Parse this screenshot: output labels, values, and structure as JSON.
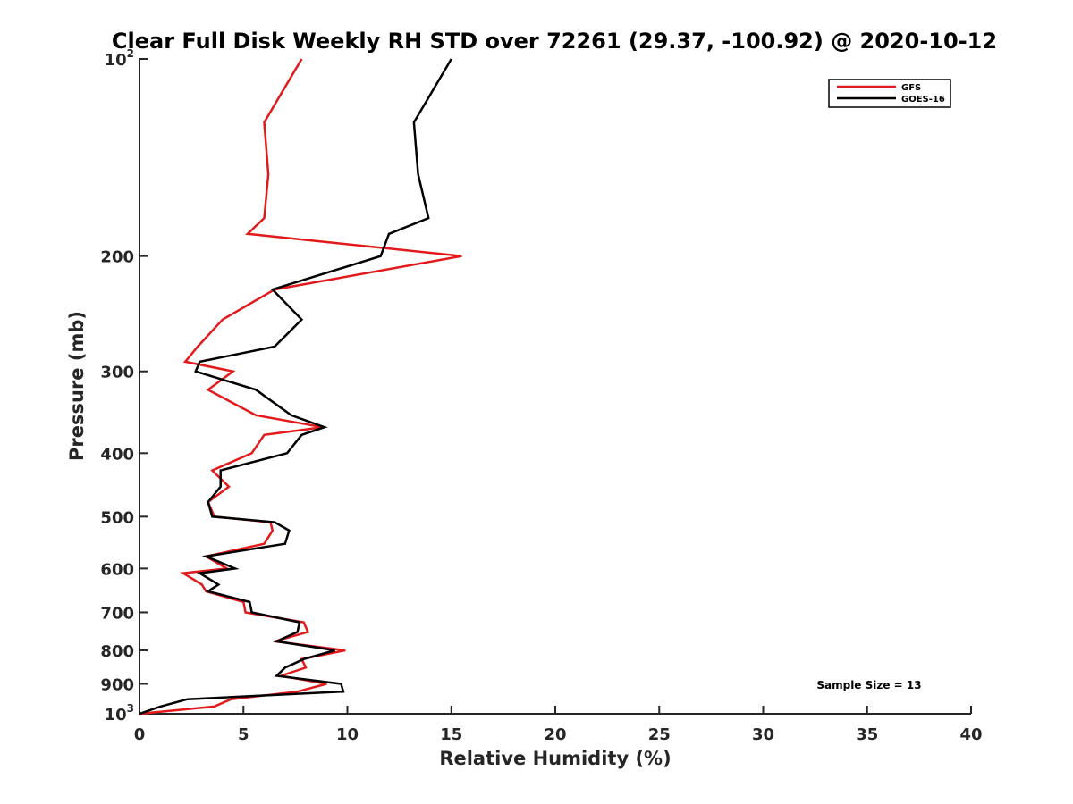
{
  "chart_data": {
    "type": "line",
    "title": "Clear Full Disk Weekly RH STD over 72261 (29.37, -100.92) @ 2020-10-12",
    "xlabel": "Relative Humidity (%)",
    "ylabel": "Pressure (mb)",
    "xlim": [
      0,
      40
    ],
    "ylim": [
      100,
      1000
    ],
    "y_scale": "log",
    "y_reversed": true,
    "x_ticks": [
      "0",
      "5",
      "10",
      "15",
      "20",
      "25",
      "30",
      "35",
      "40"
    ],
    "y_ticks": [
      {
        "value": 100,
        "base": "10",
        "exp": "2"
      },
      {
        "value": 200,
        "label": "200"
      },
      {
        "value": 300,
        "label": "300"
      },
      {
        "value": 400,
        "label": "400"
      },
      {
        "value": 500,
        "label": "500"
      },
      {
        "value": 600,
        "label": "600"
      },
      {
        "value": 700,
        "label": "700"
      },
      {
        "value": 800,
        "label": "800"
      },
      {
        "value": 900,
        "label": "900"
      },
      {
        "value": 1000,
        "base": "10",
        "exp": "3"
      }
    ],
    "grid": false,
    "legend_position": "top-right",
    "annotation": "Sample Size = 13",
    "series": [
      {
        "name": "GFS",
        "color": "#e31a1c",
        "points": [
          [
            7.8,
            100
          ],
          [
            6.0,
            125
          ],
          [
            6.2,
            150
          ],
          [
            6.0,
            175
          ],
          [
            5.2,
            185
          ],
          [
            15.5,
            200
          ],
          [
            6.5,
            225
          ],
          [
            4.0,
            250
          ],
          [
            2.8,
            275
          ],
          [
            2.2,
            290
          ],
          [
            4.5,
            300
          ],
          [
            3.3,
            320
          ],
          [
            5.6,
            350
          ],
          [
            8.8,
            365
          ],
          [
            6.0,
            375
          ],
          [
            5.4,
            400
          ],
          [
            3.5,
            425
          ],
          [
            4.3,
            450
          ],
          [
            3.3,
            475
          ],
          [
            3.6,
            500
          ],
          [
            6.3,
            510
          ],
          [
            6.4,
            525
          ],
          [
            6.0,
            550
          ],
          [
            3.2,
            575
          ],
          [
            4.2,
            600
          ],
          [
            2.1,
            610
          ],
          [
            3.0,
            635
          ],
          [
            3.2,
            650
          ],
          [
            5.0,
            675
          ],
          [
            5.1,
            700
          ],
          [
            7.9,
            725
          ],
          [
            8.1,
            750
          ],
          [
            6.5,
            775
          ],
          [
            9.9,
            800
          ],
          [
            7.8,
            825
          ],
          [
            8.0,
            850
          ],
          [
            6.8,
            875
          ],
          [
            9.0,
            900
          ],
          [
            7.6,
            925
          ],
          [
            4.4,
            950
          ],
          [
            3.6,
            975
          ],
          [
            0.0,
            1000
          ]
        ]
      },
      {
        "name": "GOES-16",
        "color": "#000000",
        "points": [
          [
            15.0,
            100
          ],
          [
            13.2,
            125
          ],
          [
            13.4,
            150
          ],
          [
            13.9,
            175
          ],
          [
            12.0,
            185
          ],
          [
            11.6,
            200
          ],
          [
            6.4,
            225
          ],
          [
            7.8,
            250
          ],
          [
            6.5,
            275
          ],
          [
            2.9,
            290
          ],
          [
            2.7,
            300
          ],
          [
            5.6,
            320
          ],
          [
            7.3,
            350
          ],
          [
            8.9,
            365
          ],
          [
            7.8,
            375
          ],
          [
            7.1,
            400
          ],
          [
            3.9,
            425
          ],
          [
            3.9,
            450
          ],
          [
            3.3,
            475
          ],
          [
            3.5,
            500
          ],
          [
            6.5,
            510
          ],
          [
            7.2,
            525
          ],
          [
            7.0,
            550
          ],
          [
            3.2,
            575
          ],
          [
            4.6,
            600
          ],
          [
            2.9,
            610
          ],
          [
            3.8,
            635
          ],
          [
            3.3,
            650
          ],
          [
            5.3,
            675
          ],
          [
            5.4,
            700
          ],
          [
            7.7,
            725
          ],
          [
            7.6,
            750
          ],
          [
            6.6,
            775
          ],
          [
            9.4,
            800
          ],
          [
            7.9,
            825
          ],
          [
            7.0,
            850
          ],
          [
            6.6,
            875
          ],
          [
            9.7,
            900
          ],
          [
            9.8,
            925
          ],
          [
            2.3,
            950
          ],
          [
            1.0,
            975
          ],
          [
            0.0,
            1000
          ]
        ]
      }
    ]
  }
}
